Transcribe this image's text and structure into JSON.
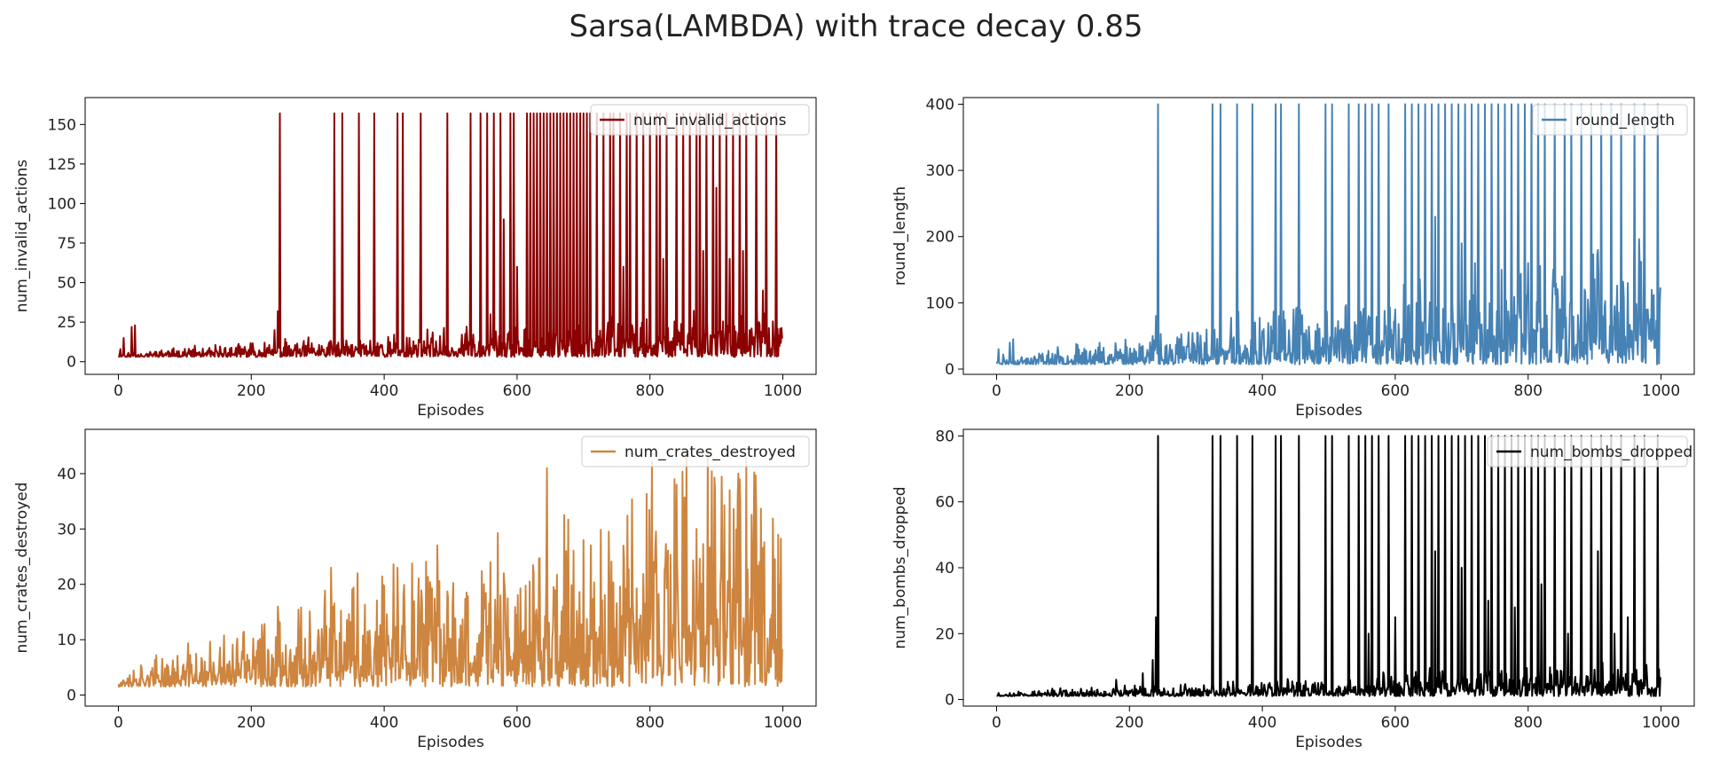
{
  "figure": {
    "title": "Sarsa(LAMBDA) with trace decay 0.85"
  },
  "chart_data": [
    {
      "type": "line",
      "title": "",
      "xlabel": "Episodes",
      "ylabel": "num_invalid_actions",
      "xlim": [
        -50,
        1050
      ],
      "ylim": [
        -8,
        167
      ],
      "xticks": [
        0,
        200,
        400,
        600,
        800,
        1000
      ],
      "yticks": [
        0,
        25,
        50,
        75,
        100,
        125,
        150
      ],
      "legend": "upper right",
      "series": [
        {
          "name": "num_invalid_actions",
          "color": "#8b0000",
          "baseline": {
            "n": 1000,
            "base": 3,
            "amp": 4,
            "growth": 0.004,
            "seed": 11
          },
          "early": [
            [
              3,
              8
            ],
            [
              8,
              15
            ],
            [
              20,
              22
            ],
            [
              25,
              23
            ],
            [
              180,
              10
            ],
            [
              220,
              12
            ],
            [
              235,
              20
            ],
            [
              240,
              32
            ]
          ],
          "mid": [
            [
              560,
              30
            ],
            [
              580,
              90
            ],
            [
              600,
              60
            ],
            [
              660,
              100
            ],
            [
              690,
              90
            ],
            [
              720,
              70
            ],
            [
              760,
              60
            ],
            [
              780,
              25
            ],
            [
              820,
              65
            ],
            [
              850,
              40
            ],
            [
              880,
              70
            ],
            [
              900,
              110
            ],
            [
              920,
              65
            ],
            [
              940,
              70
            ],
            [
              950,
              20
            ],
            [
              970,
              45
            ],
            [
              990,
              30
            ]
          ],
          "spikes": [
            243,
            325,
            337,
            362,
            385,
            420,
            428,
            455,
            495,
            530,
            545,
            555,
            565,
            575,
            590,
            595,
            615,
            620,
            625,
            630,
            635,
            640,
            645,
            650,
            655,
            660,
            665,
            670,
            675,
            680,
            685,
            690,
            695,
            700,
            705,
            710,
            720,
            730,
            740,
            745,
            755,
            765,
            770,
            780,
            790,
            800,
            810,
            815,
            825,
            840,
            850,
            860,
            870,
            875,
            885,
            895,
            905,
            915,
            925,
            935,
            945,
            960,
            975,
            990
          ],
          "spike_max": 157
        }
      ]
    },
    {
      "type": "line",
      "title": "",
      "xlabel": "Episodes",
      "ylabel": "round_length",
      "xlim": [
        -50,
        1050
      ],
      "ylim": [
        -8,
        410
      ],
      "xticks": [
        0,
        200,
        400,
        600,
        800,
        1000
      ],
      "yticks": [
        0,
        100,
        200,
        300,
        400
      ],
      "legend": "upper right",
      "series": [
        {
          "name": "round_length",
          "color": "#4682b4",
          "baseline": {
            "n": 1000,
            "base": 7,
            "amp": 10,
            "growth": 0.01,
            "seed": 23
          },
          "early": [
            [
              3,
              30
            ],
            [
              10,
              22
            ],
            [
              20,
              40
            ],
            [
              25,
              45
            ],
            [
              180,
              30
            ],
            [
              220,
              35
            ],
            [
              235,
              50
            ],
            [
              240,
              80
            ]
          ],
          "mid": [
            [
              560,
              80
            ],
            [
              600,
              90
            ],
            [
              660,
              230
            ],
            [
              700,
              190
            ],
            [
              720,
              160
            ],
            [
              760,
              150
            ],
            [
              800,
              160
            ],
            [
              840,
              100
            ],
            [
              880,
              130
            ],
            [
              905,
              180
            ],
            [
              930,
              95
            ],
            [
              950,
              130
            ],
            [
              980,
              90
            ]
          ],
          "spikes": [
            243,
            325,
            337,
            362,
            385,
            420,
            428,
            455,
            495,
            505,
            530,
            545,
            555,
            565,
            575,
            590,
            615,
            625,
            635,
            645,
            655,
            665,
            675,
            685,
            695,
            705,
            715,
            725,
            735,
            745,
            755,
            765,
            775,
            785,
            795,
            805,
            815,
            825,
            840,
            855,
            865,
            880,
            895,
            910,
            925,
            940,
            960,
            975,
            995
          ],
          "spike_max": 400
        }
      ]
    },
    {
      "type": "line",
      "title": "",
      "xlabel": "Episodes",
      "ylabel": "num_crates_destroyed",
      "xlim": [
        -50,
        1050
      ],
      "ylim": [
        -2,
        48
      ],
      "xticks": [
        0,
        200,
        400,
        600,
        800,
        1000
      ],
      "yticks": [
        0,
        10,
        20,
        30,
        40
      ],
      "legend": "upper right",
      "series": [
        {
          "name": "num_crates_destroyed",
          "color": "#cd853f",
          "baseline": {
            "n": 1000,
            "base": 1.5,
            "amp": 3,
            "growth": 0.009,
            "seed": 37
          },
          "early": [],
          "mid": [
            [
              240,
              16
            ],
            [
              320,
              23
            ],
            [
              360,
              22
            ],
            [
              420,
              23
            ],
            [
              560,
              24
            ],
            [
              580,
              22
            ],
            [
              645,
              41
            ],
            [
              700,
              28
            ],
            [
              760,
              27
            ],
            [
              855,
              43
            ],
            [
              870,
              30
            ],
            [
              920,
              37
            ],
            [
              935,
              39
            ],
            [
              945,
              43
            ],
            [
              960,
              33
            ],
            [
              995,
              20
            ]
          ],
          "spikes": [],
          "spike_max": 0
        }
      ]
    },
    {
      "type": "line",
      "title": "",
      "xlabel": "Episodes",
      "ylabel": "num_bombs_dropped",
      "xlim": [
        -50,
        1050
      ],
      "ylim": [
        -2,
        82
      ],
      "xticks": [
        0,
        200,
        400,
        600,
        800,
        1000
      ],
      "yticks": [
        0,
        20,
        40,
        60,
        80
      ],
      "legend": "upper right",
      "series": [
        {
          "name": "num_bombs_dropped",
          "color": "#000000",
          "baseline": {
            "n": 1000,
            "base": 1,
            "amp": 1.5,
            "growth": 0.004,
            "seed": 53
          },
          "early": [
            [
              3,
              2
            ],
            [
              20,
              2
            ],
            [
              180,
              6
            ],
            [
              220,
              8
            ],
            [
              235,
              12
            ],
            [
              240,
              25
            ]
          ],
          "mid": [
            [
              560,
              20
            ],
            [
              600,
              25
            ],
            [
              660,
              45
            ],
            [
              700,
              40
            ],
            [
              740,
              30
            ],
            [
              780,
              28
            ],
            [
              820,
              35
            ],
            [
              860,
              20
            ],
            [
              880,
              25
            ],
            [
              905,
              45
            ],
            [
              930,
              20
            ],
            [
              950,
              25
            ],
            [
              975,
              18
            ]
          ],
          "spikes": [
            243,
            325,
            337,
            362,
            385,
            420,
            428,
            455,
            495,
            505,
            530,
            545,
            555,
            565,
            575,
            590,
            615,
            625,
            635,
            645,
            655,
            665,
            675,
            685,
            695,
            705,
            715,
            725,
            735,
            745,
            755,
            765,
            775,
            785,
            795,
            805,
            815,
            825,
            840,
            855,
            865,
            880,
            895,
            910,
            925,
            940,
            960,
            975,
            995
          ],
          "spike_max": 80
        }
      ]
    }
  ]
}
